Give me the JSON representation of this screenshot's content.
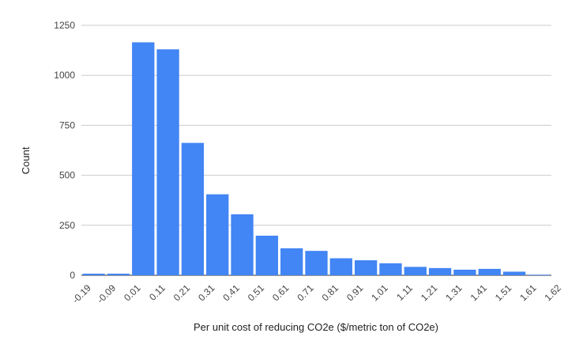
{
  "chart_data": {
    "type": "bar",
    "title": "",
    "xlabel": "Per unit cost of reducing CO2e ($/metric ton of CO2e)",
    "ylabel": "Count",
    "ylim": [
      0,
      1250
    ],
    "yticks": [
      "0",
      "250",
      "500",
      "750",
      "1000",
      "1250"
    ],
    "edges": [
      "-0.19",
      "-0.09",
      "0.01",
      "0.11",
      "0.21",
      "0.31",
      "0.41",
      "0.51",
      "0.61",
      "0.71",
      "0.81",
      "0.91",
      "1.01",
      "1.11",
      "1.21",
      "1.31",
      "1.41",
      "1.51",
      "1.61",
      "1.62"
    ],
    "values": [
      8,
      8,
      1165,
      1130,
      662,
      405,
      305,
      198,
      135,
      122,
      85,
      75,
      60,
      42,
      36,
      28,
      32,
      18,
      3
    ],
    "grid": true,
    "legend": "none",
    "bar_color": "#4285f4"
  }
}
